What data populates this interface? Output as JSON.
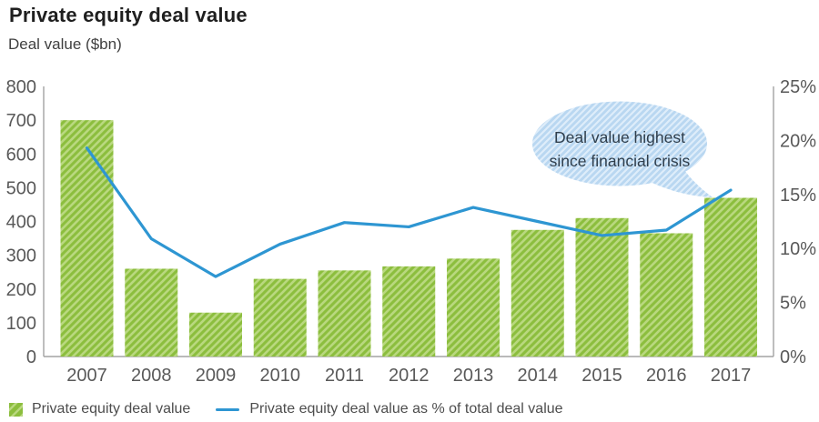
{
  "page": {
    "title": "Private equity deal value",
    "subtitle": "Deal value ($bn)"
  },
  "annotation": {
    "line1": "Deal value highest",
    "line2": "since financial crisis"
  },
  "legend": {
    "bar_label": "Private equity deal value",
    "line_label": "Private equity deal value as % of total deal value"
  },
  "colors": {
    "bar_base": "#8CBE3E",
    "bar_stripe": "#B9D87F",
    "line": "#2E96D2",
    "bubble_base": "#B9D7F1",
    "bubble_stripe": "#DEEDFA",
    "axis": "#A3A3A3",
    "tick_text": "#595959",
    "annotation_text": "#2F3E4C"
  },
  "chart_data": {
    "type": "bar+line combo",
    "title": "Private equity deal value",
    "categories": [
      "2007",
      "2008",
      "2009",
      "2010",
      "2011",
      "2012",
      "2013",
      "2014",
      "2015",
      "2016",
      "2017"
    ],
    "series": [
      {
        "name": "Private equity deal value",
        "type": "bar",
        "axis": "left",
        "units": "$bn",
        "values": [
          700,
          260,
          130,
          230,
          255,
          267,
          290,
          375,
          410,
          365,
          470
        ]
      },
      {
        "name": "Private equity deal value as % of total deal value",
        "type": "line",
        "axis": "right",
        "units": "%",
        "values": [
          19.3,
          10.9,
          7.4,
          10.4,
          12.4,
          12.0,
          13.8,
          12.5,
          11.2,
          11.7,
          15.4
        ]
      }
    ],
    "left_axis": {
      "title": "Deal value ($bn)",
      "min": 0,
      "max": 800,
      "step": 100
    },
    "right_axis": {
      "min": 0,
      "max": 25,
      "step": 5,
      "suffix": "%"
    },
    "grid": false,
    "legend_position": "bottom",
    "annotation_note": "Speech bubble pointing at 2017 line value: Deal value highest since financial crisis"
  }
}
